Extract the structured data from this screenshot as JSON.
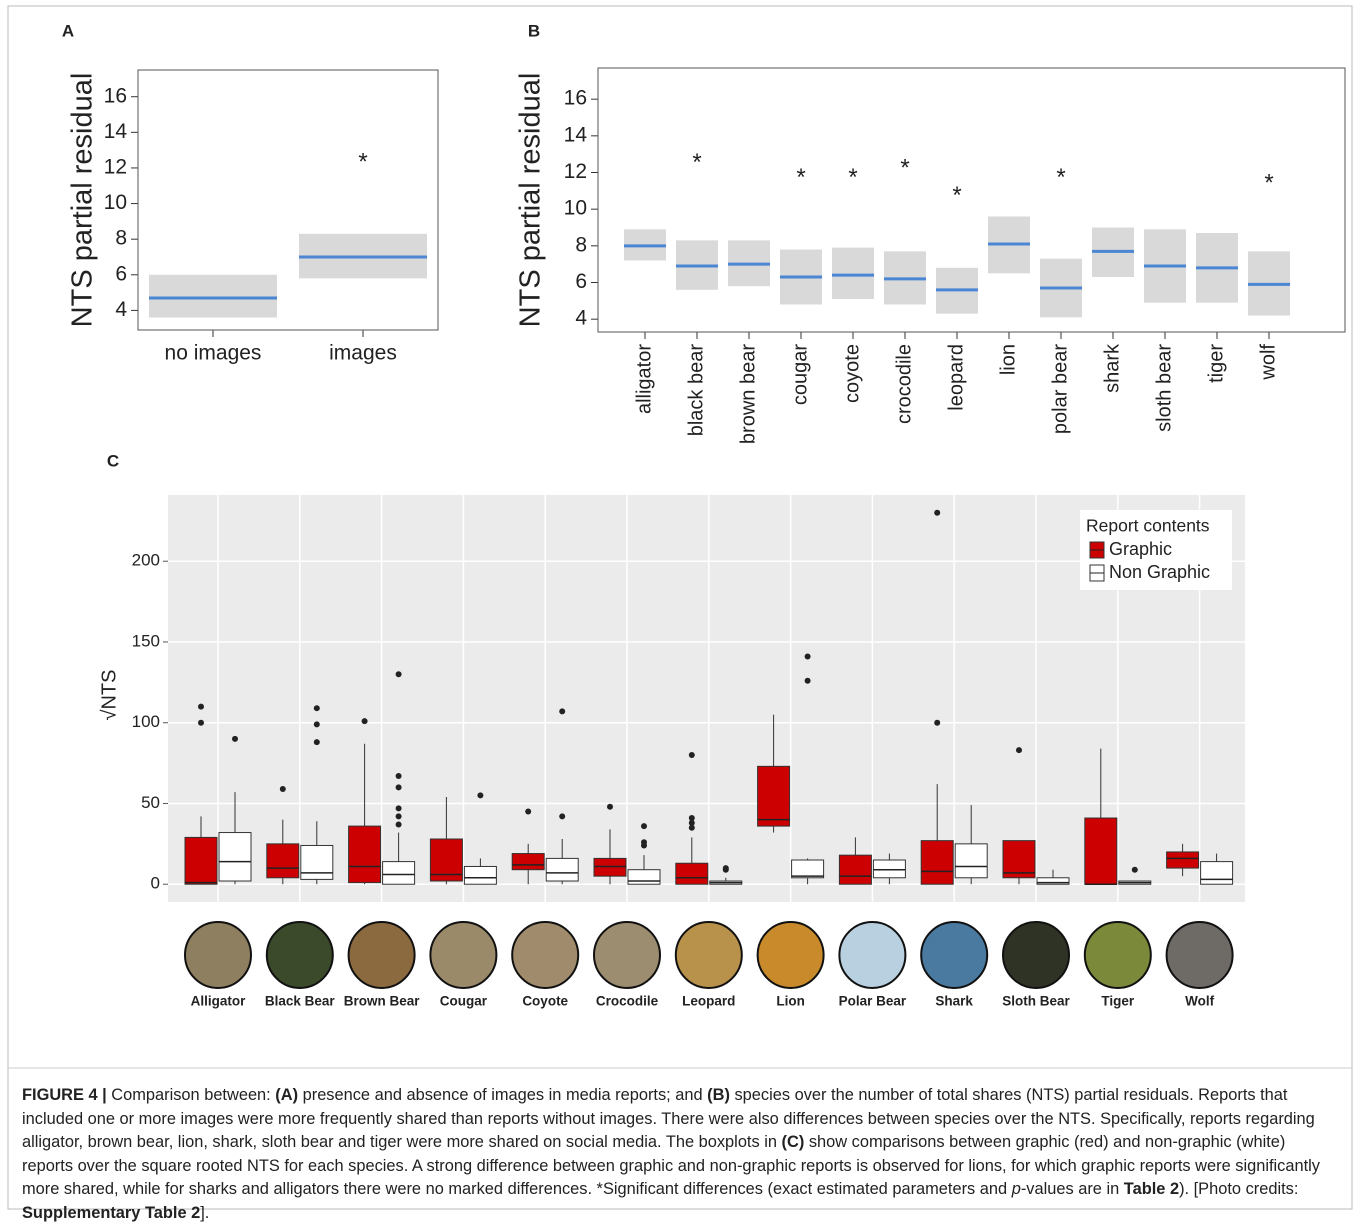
{
  "chart_data": [
    {
      "type": "interval",
      "panel_label": "A",
      "ylabel": "NTS partial residual",
      "categories": [
        "no images",
        "images"
      ],
      "values": [
        4.7,
        7.0
      ],
      "lower": [
        3.6,
        5.8
      ],
      "upper": [
        6.0,
        8.3
      ],
      "markers": [
        null,
        12.6
      ],
      "marker_label": "*",
      "color": "#4a86d4",
      "band_color": "#d9d9d9",
      "ylim": [
        2.9,
        17.5
      ],
      "yticks": [
        4,
        6,
        8,
        10,
        12,
        14,
        16
      ]
    },
    {
      "type": "interval",
      "panel_label": "B",
      "ylabel": "NTS partial residual",
      "categories": [
        "alligator",
        "black bear",
        "brown bear",
        "cougar",
        "coyote",
        "crocodile",
        "leopard",
        "lion",
        "polar bear",
        "shark",
        "sloth bear",
        "tiger",
        "wolf"
      ],
      "values": [
        8.0,
        6.9,
        7.0,
        6.3,
        6.4,
        6.2,
        5.6,
        8.1,
        5.7,
        7.7,
        6.9,
        6.8,
        5.9
      ],
      "lower": [
        7.2,
        5.6,
        5.8,
        4.8,
        5.1,
        4.8,
        4.3,
        6.5,
        4.1,
        6.3,
        4.9,
        4.9,
        4.2
      ],
      "upper": [
        8.9,
        8.3,
        8.3,
        7.8,
        7.9,
        7.7,
        6.8,
        9.6,
        7.3,
        9.0,
        8.9,
        8.7,
        7.7
      ],
      "markers": [
        null,
        12.8,
        null,
        12.0,
        12.0,
        12.5,
        11.0,
        null,
        12.0,
        null,
        null,
        null,
        11.7
      ],
      "marker_label": "*",
      "color": "#4a86d4",
      "band_color": "#d9d9d9",
      "ylim": [
        3.3,
        17.7
      ],
      "yticks": [
        4,
        6,
        8,
        10,
        12,
        14,
        16
      ]
    },
    {
      "type": "box",
      "panel_label": "C",
      "ylabel": "√NTS",
      "categories": [
        "Alligator",
        "Black Bear",
        "Brown Bear",
        "Cougar",
        "Coyote",
        "Crocodile",
        "Leopard",
        "Lion",
        "Polar Bear",
        "Shark",
        "Sloth Bear",
        "Tiger",
        "Wolf"
      ],
      "legend_title": "Report contents",
      "legend": "top-right",
      "grid": true,
      "ylim": [
        -11,
        241
      ],
      "yticks": [
        0,
        50,
        100,
        150,
        200
      ],
      "series": [
        {
          "name": "Graphic",
          "color": "#cc0000",
          "boxes": [
            [
              0,
              0,
              1,
              29,
              42
            ],
            [
              0,
              4,
              10,
              25,
              40
            ],
            [
              0,
              1,
              11,
              36,
              87
            ],
            [
              0,
              2,
              6,
              28,
              54
            ],
            [
              0,
              9,
              12,
              19,
              25
            ],
            [
              0,
              5,
              11,
              16,
              34
            ],
            [
              0,
              0,
              4,
              13,
              29
            ],
            [
              32,
              36,
              40,
              73,
              105
            ],
            [
              0,
              0,
              5,
              18,
              29
            ],
            [
              0,
              0,
              8,
              27,
              62
            ],
            [
              0,
              4,
              7,
              27,
              27
            ],
            [
              0,
              0,
              0,
              41,
              84
            ],
            [
              5,
              10,
              16,
              20,
              25
            ]
          ],
          "outliers": [
            [
              100,
              110
            ],
            [
              59
            ],
            [
              101
            ],
            [],
            [
              45
            ],
            [
              48
            ],
            [
              35,
              38,
              41,
              80
            ],
            [],
            [],
            [
              100,
              230
            ],
            [
              83
            ],
            [],
            []
          ]
        },
        {
          "name": "Non Graphic",
          "color": "#ffffff",
          "boxes": [
            [
              0,
              2,
              14,
              32,
              57
            ],
            [
              0,
              3,
              7,
              24,
              39
            ],
            [
              0,
              0,
              6,
              14,
              32
            ],
            [
              0,
              0,
              4,
              11,
              16
            ],
            [
              0,
              2,
              7,
              16,
              28
            ],
            [
              0,
              0,
              2,
              9,
              18
            ],
            [
              0,
              0,
              1,
              2,
              4
            ],
            [
              0,
              4,
              5,
              15,
              16
            ],
            [
              0,
              4,
              9,
              15,
              19
            ],
            [
              0,
              4,
              11,
              25,
              49
            ],
            [
              0,
              0,
              1,
              4,
              9
            ],
            [
              0,
              0,
              1,
              2,
              2
            ],
            [
              0,
              0,
              3,
              14,
              19
            ]
          ],
          "outliers": [
            [
              90
            ],
            [
              88,
              99,
              109
            ],
            [
              37,
              42,
              47,
              60,
              67,
              130
            ],
            [
              55
            ],
            [
              42,
              107
            ],
            [
              24,
              26,
              36
            ],
            [
              9,
              10
            ],
            [
              126,
              141
            ],
            [],
            [],
            [],
            [
              9
            ],
            []
          ]
        }
      ]
    }
  ],
  "caption": [
    {
      "text": "FIGURE 4 |",
      "style": "b"
    },
    {
      "text": " Comparison between: ",
      "style": ""
    },
    {
      "text": "(A)",
      "style": "b"
    },
    {
      "text": " presence and absence of images in media reports; and ",
      "style": ""
    },
    {
      "text": "(B)",
      "style": "b"
    },
    {
      "text": " species over the number of total shares (NTS) partial residuals. Reports that included one or more images were more frequently shared than reports without images. There were also differences between species over the NTS. Specifically, reports regarding alligator, brown bear, lion, shark, sloth bear and tiger were more shared on social media. The boxplots in ",
      "style": ""
    },
    {
      "text": "(C)",
      "style": "b"
    },
    {
      "text": " show comparisons between graphic (red) and non-graphic (white) reports over the square rooted NTS for each species. A strong difference between graphic and non-graphic reports is observed for lions, for which graphic reports were significantly more shared, while for sharks and alligators there were no marked differences. *Significant differences (exact estimated parameters and ",
      "style": ""
    },
    {
      "text": "p",
      "style": "i"
    },
    {
      "text": "-values are in ",
      "style": ""
    },
    {
      "text": "Table 2",
      "style": "b"
    },
    {
      "text": "). [Photo credits: ",
      "style": ""
    },
    {
      "text": "Supplementary Table 2",
      "style": "b"
    },
    {
      "text": "].",
      "style": ""
    }
  ]
}
